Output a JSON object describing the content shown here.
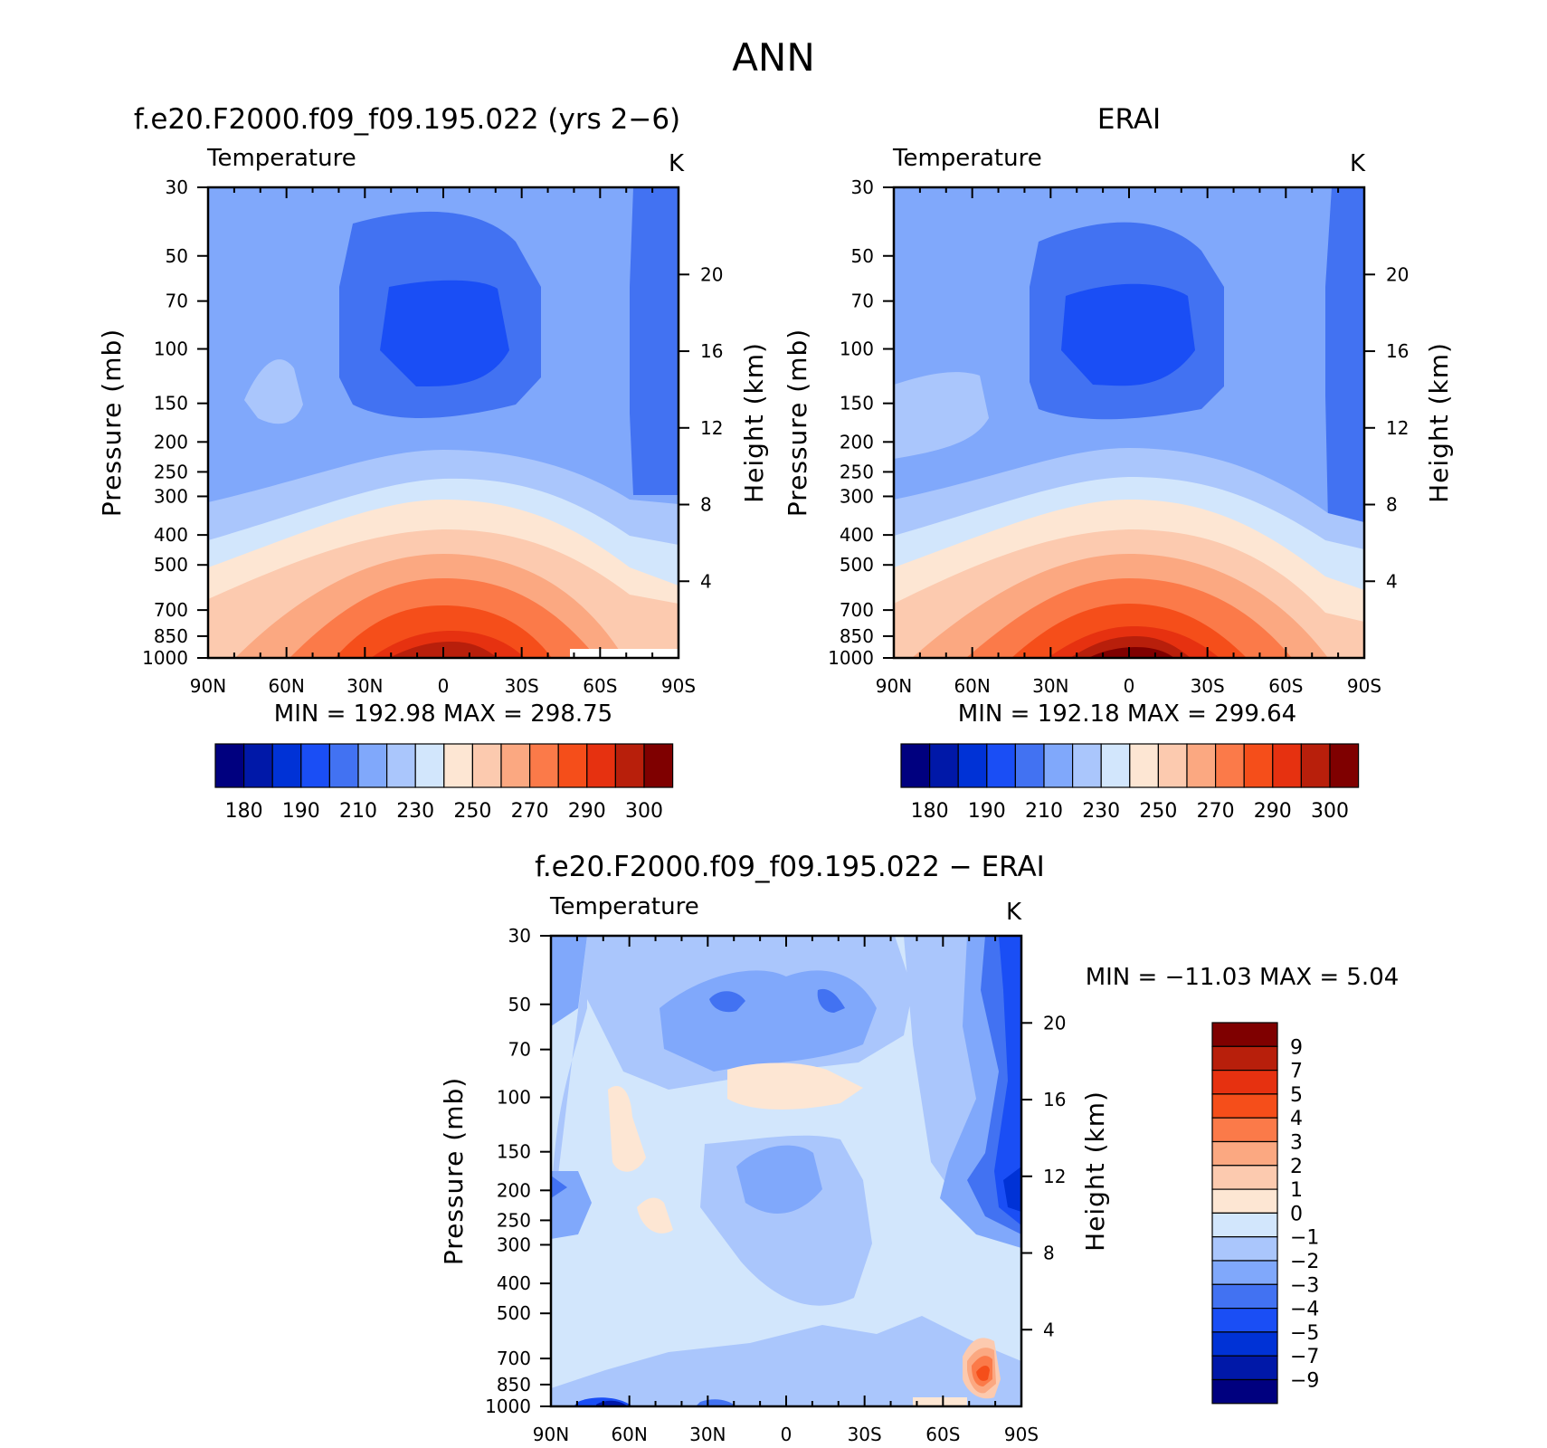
{
  "figure": {
    "title": "ANN",
    "diff_minmax": "MIN = −11.03   MAX =    5.04"
  },
  "colors": {
    "abs_scale": [
      "#00007f",
      "#0018a8",
      "#0032d6",
      "#1a4ef5",
      "#4272f2",
      "#80a8fb",
      "#aac6fc",
      "#d2e6fc",
      "#fde6d3",
      "#fccaaf",
      "#fba881",
      "#fb7a49",
      "#f54e1a",
      "#e63110",
      "#b81f0b",
      "#7f0000"
    ],
    "diff_scale": [
      "#7f0000",
      "#b81f0b",
      "#e63110",
      "#f54e1a",
      "#fb7a49",
      "#fba881",
      "#fccaaf",
      "#fde6d3",
      "#d2e6fc",
      "#aac6fc",
      "#80a8fb",
      "#4272f2",
      "#1a4ef5",
      "#0032d6",
      "#0018a8",
      "#00007f"
    ]
  },
  "chart_data": [
    {
      "id": "model",
      "type": "heatmap",
      "subtitle": "f.e20.F2000.f09_f09.195.022 (yrs 2−6)",
      "title": "Temperature",
      "units": "K",
      "xlabel": "",
      "ylabel": "Pressure (mb)",
      "y2label": "Height (km)",
      "xticklabels": [
        "90N",
        "60N",
        "30N",
        "0",
        "30S",
        "60S",
        "90S"
      ],
      "yticks": [
        30,
        50,
        70,
        100,
        150,
        200,
        250,
        300,
        400,
        500,
        700,
        850,
        1000
      ],
      "y2ticks": [
        20,
        16,
        12,
        8,
        4
      ],
      "minmax": "MIN = 192.98   MAX = 298.75",
      "min": 192.98,
      "max": 298.75,
      "colorbar_labels": [
        "180",
        "190",
        "210",
        "230",
        "250",
        "270",
        "290",
        "300"
      ]
    },
    {
      "id": "obs",
      "type": "heatmap",
      "subtitle": "ERAI",
      "title": "Temperature",
      "units": "K",
      "xlabel": "",
      "ylabel": "Pressure (mb)",
      "y2label": "Height (km)",
      "xticklabels": [
        "90N",
        "60N",
        "30N",
        "0",
        "30S",
        "60S",
        "90S"
      ],
      "yticks": [
        30,
        50,
        70,
        100,
        150,
        200,
        250,
        300,
        400,
        500,
        700,
        850,
        1000
      ],
      "y2ticks": [
        20,
        16,
        12,
        8,
        4
      ],
      "minmax": "MIN = 192.18   MAX = 299.64",
      "min": 192.18,
      "max": 299.64,
      "colorbar_labels": [
        "180",
        "190",
        "210",
        "230",
        "250",
        "270",
        "290",
        "300"
      ]
    },
    {
      "id": "diff",
      "type": "heatmap",
      "subtitle": "f.e20.F2000.f09_f09.195.022 − ERAI",
      "title": "Temperature",
      "units": "K",
      "xlabel": "",
      "ylabel": "Pressure (mb)",
      "y2label": "Height (km)",
      "xticklabels": [
        "90N",
        "60N",
        "30N",
        "0",
        "30S",
        "60S",
        "90S"
      ],
      "yticks": [
        30,
        50,
        70,
        100,
        150,
        200,
        250,
        300,
        400,
        500,
        700,
        850,
        1000
      ],
      "y2ticks": [
        20,
        16,
        12,
        8,
        4
      ],
      "min": -11.03,
      "max": 5.04,
      "colorbar_labels": [
        "9",
        "7",
        "5",
        "4",
        "3",
        "2",
        "1",
        "0",
        "−1",
        "−2",
        "−3",
        "−4",
        "−5",
        "−7",
        "−9"
      ]
    }
  ]
}
